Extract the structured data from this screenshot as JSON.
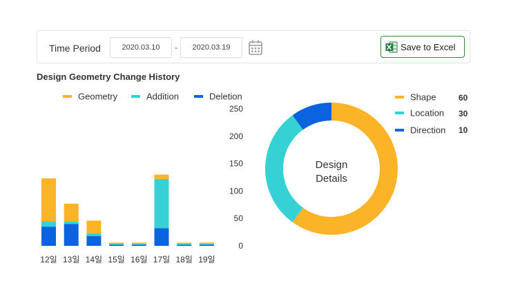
{
  "filter": {
    "period_label": "Time Period",
    "start_date": "2020.03.10",
    "separator": "-",
    "end_date": "2020.03.19",
    "calendar_icon": "calendar-icon",
    "excel_icon": "excel-icon",
    "excel_button_label": "Save to Excel"
  },
  "section_title": "Design Geometry Change History",
  "colors": {
    "geometry": "#fbb427",
    "addition": "#36d1d4",
    "deletion": "#0b63de",
    "excel_border": "#2e8b3a"
  },
  "chart_data": [
    {
      "type": "bar",
      "stacked": true,
      "categories": [
        "12일",
        "13일",
        "14일",
        "15일",
        "16일",
        "17일",
        "18일",
        "19일"
      ],
      "series": [
        {
          "name": "Deletion",
          "color": "#0b63de",
          "values": [
            35,
            40,
            18,
            2,
            2,
            32,
            2,
            2
          ]
        },
        {
          "name": "Addition",
          "color": "#36d1d4",
          "values": [
            10,
            5,
            5,
            2,
            2,
            90,
            2,
            2
          ]
        },
        {
          "name": "Geometry",
          "color": "#fbb427",
          "values": [
            78,
            32,
            23,
            2,
            2,
            8,
            2,
            2
          ]
        }
      ],
      "legend_order": [
        "Geometry",
        "Addition",
        "Deletion"
      ],
      "yticks": [
        0,
        50,
        100,
        150,
        200,
        250
      ],
      "ylim": [
        0,
        250
      ],
      "y_axis_position": "right",
      "legend": "top",
      "grid": false
    },
    {
      "type": "pie",
      "donut": true,
      "center_label": [
        "Design",
        "Details"
      ],
      "labels": [
        "Shape",
        "Location",
        "Direction"
      ],
      "values": [
        60,
        30,
        10
      ],
      "colors": [
        "#fbb427",
        "#36d1d4",
        "#0b63de"
      ],
      "legend": "right"
    }
  ]
}
